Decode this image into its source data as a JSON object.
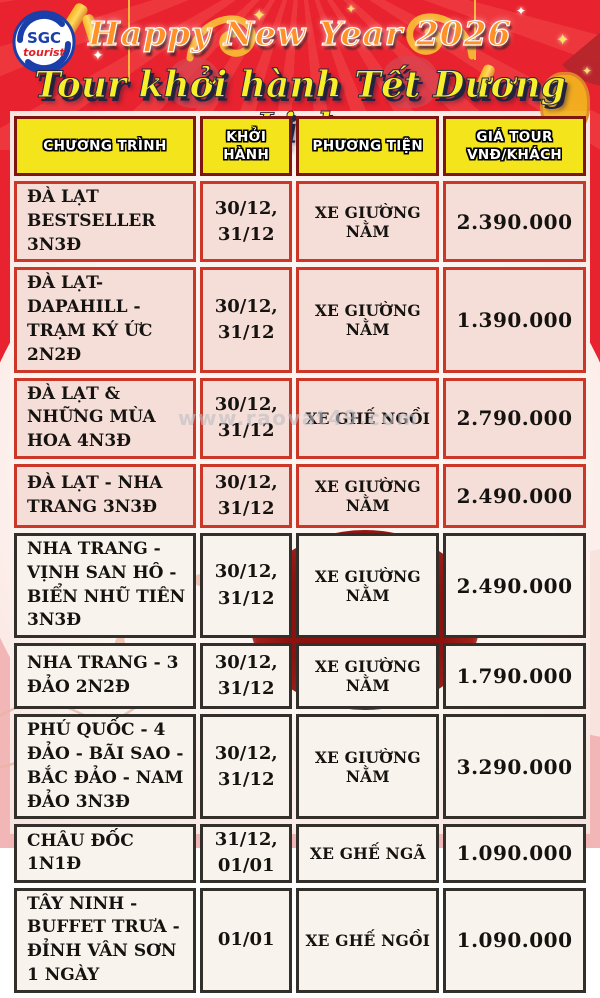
{
  "logo": {
    "abbr": "SGC",
    "sub": "tourist"
  },
  "banner": {
    "title": "Happy New Year 2026",
    "subtitle": "Tour khởi hành Tết Dương Lịch"
  },
  "watermark": "www.raovat49.com",
  "table": {
    "columns": [
      "CHƯƠNG TRÌNH",
      "KHỞI HÀNH",
      "PHƯƠNG TIỆN",
      "GIÁ TOUR VNĐ/KHÁCH"
    ],
    "rows": [
      {
        "program": "ĐÀ LẠT BESTSELLER 3N3Đ",
        "departure": "30/12, 31/12",
        "transport": "XE GIƯỜNG NẰM",
        "price": "2.390.000"
      },
      {
        "program": "ĐÀ LẠT- DAPAHILL - TRẠM KÝ ỨC 2N2Đ",
        "departure": "30/12, 31/12",
        "transport": "XE GIƯỜNG NẰM",
        "price": "1.390.000"
      },
      {
        "program": "ĐÀ LẠT & NHỮNG MÙA HOA 4N3Đ",
        "departure": "30/12, 31/12",
        "transport": "XE GHẾ NGỒI",
        "price": "2.790.000"
      },
      {
        "program": "ĐÀ LẠT - NHA TRANG 3N3Đ",
        "departure": "30/12, 31/12",
        "transport": "XE GIƯỜNG NẰM",
        "price": "2.490.000"
      },
      {
        "program": "NHA TRANG - VỊNH SAN HÔ - BIỂN NHŨ TIÊN 3N3Đ",
        "departure": "30/12, 31/12",
        "transport": "XE GIƯỜNG NẰM",
        "price": "2.490.000"
      },
      {
        "program": "NHA TRANG - 3 ĐẢO 2N2Đ",
        "departure": "30/12, 31/12",
        "transport": "XE GIƯỜNG NẰM",
        "price": "1.790.000"
      },
      {
        "program": "PHÚ QUỐC - 4 ĐẢO - BÃI SAO - BẮC ĐẢO - NAM ĐẢO 3N3Đ",
        "departure": "30/12, 31/12",
        "transport": "XE GIƯỜNG NẰM",
        "price": "3.290.000"
      },
      {
        "program": "CHÂU ĐỐC 1N1Đ",
        "departure": "31/12, 01/01",
        "transport": "XE GHẾ NGÃ",
        "price": "1.090.000"
      },
      {
        "program": "TÂY NINH - BUFFET TRƯA - ĐỈNH VÂN SƠN 1 NGÀY",
        "departure": "01/01",
        "transport": "XE GHẾ NGỒI",
        "price": "1.090.000"
      }
    ]
  },
  "colors": {
    "banner_red": "#e8222e",
    "header_yellow": "#f4e41c",
    "header_border": "#7e150e",
    "row_border_red": "#cd3727",
    "row_border_dark": "#33302c",
    "title_orange": "#ff9126",
    "subtitle_yellow": "#f8ef2b",
    "bottom_pink": "#f2b6b6"
  }
}
